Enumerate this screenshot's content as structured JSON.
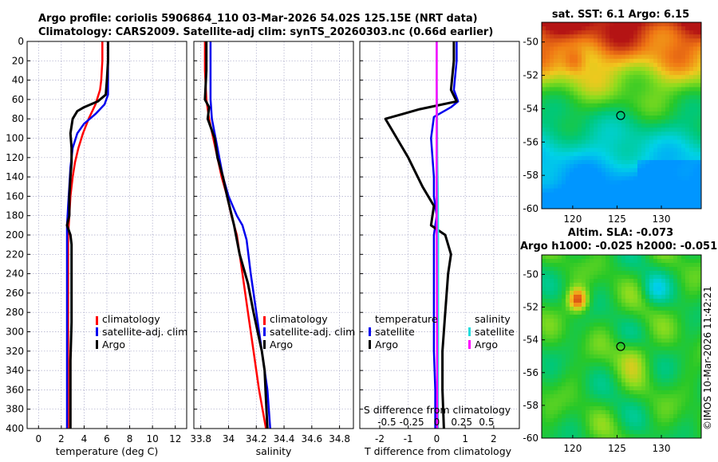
{
  "title": {
    "line1": "Argo profile: coriolis 5906864_110 03-Mar-2026 54.02S 125.15E (NRT data)",
    "line2": "Climatology: CARS2009. Satellite-adj clim: synTS_20260303.nc (0.66d earlier)"
  },
  "watermark": "©IMOS 10-Mar-2026 11:42:21",
  "colors": {
    "red": "#ff0000",
    "blue": "#0000ee",
    "black": "#000000",
    "cyan": "#22dddd",
    "magenta": "#ff00ff"
  },
  "depth_ticks": [
    "0",
    "20",
    "40",
    "60",
    "80",
    "100",
    "120",
    "140",
    "160",
    "180",
    "200",
    "220",
    "240",
    "260",
    "280",
    "300",
    "320",
    "340",
    "360",
    "380",
    "400"
  ],
  "chart_data": [
    {
      "id": "temperature",
      "type": "line",
      "xlabel": "temperature (deg C)",
      "xlim": [
        -1,
        13
      ],
      "ylim": [
        0,
        400
      ],
      "xticks": [
        "0",
        "2",
        "4",
        "6",
        "8",
        "10",
        "12"
      ],
      "legend": [
        "climatology",
        "satellite-adj. clim",
        "Argo"
      ],
      "series": [
        {
          "name": "climatology",
          "color": "red",
          "x": [
            5.6,
            5.6,
            5.5,
            5.4,
            5.0,
            4.4,
            3.9,
            3.5,
            3.2,
            3.0,
            2.8,
            2.7,
            2.6,
            2.6,
            2.6,
            2.6,
            2.6,
            2.6
          ],
          "y": [
            0,
            20,
            40,
            50,
            65,
            80,
            95,
            110,
            125,
            140,
            160,
            180,
            200,
            240,
            280,
            320,
            360,
            400
          ]
        },
        {
          "name": "satellite-adj. clim",
          "color": "blue",
          "x": [
            6.1,
            6.1,
            6.1,
            6.1,
            5.8,
            5.0,
            4.0,
            3.4,
            3.0,
            2.8,
            2.7,
            2.6,
            2.5,
            2.5,
            2.5,
            2.5,
            2.5,
            2.5
          ],
          "y": [
            0,
            20,
            40,
            55,
            65,
            75,
            85,
            95,
            110,
            130,
            150,
            170,
            190,
            230,
            270,
            320,
            360,
            400
          ]
        },
        {
          "name": "Argo",
          "color": "black",
          "x": [
            6.1,
            6.1,
            6.0,
            5.9,
            5.2,
            4.0,
            3.4,
            3.0,
            2.8,
            2.9,
            2.9,
            2.8,
            2.7,
            2.7,
            2.5,
            2.8,
            2.9,
            2.9,
            2.9,
            2.8,
            2.8,
            2.8
          ],
          "y": [
            0,
            20,
            40,
            55,
            62,
            68,
            72,
            80,
            95,
            110,
            125,
            140,
            160,
            180,
            190,
            200,
            210,
            240,
            290,
            330,
            370,
            400
          ]
        }
      ]
    },
    {
      "id": "salinity",
      "type": "line",
      "xlabel": "salinity",
      "xlim": [
        33.75,
        34.9
      ],
      "ylim": [
        0,
        400
      ],
      "xticks": [
        "33.8",
        "34",
        "34.2",
        "34.4",
        "34.6",
        "34.8"
      ],
      "legend": [
        "climatology",
        "satellite-adj. clim",
        "Argo"
      ],
      "series": [
        {
          "name": "climatology",
          "color": "red",
          "x": [
            33.83,
            33.83,
            33.84,
            33.86,
            33.89,
            33.92,
            33.95,
            33.99,
            34.02,
            34.06,
            34.1,
            34.14,
            34.18,
            34.22,
            34.27
          ],
          "y": [
            0,
            30,
            60,
            80,
            100,
            120,
            140,
            160,
            180,
            200,
            240,
            280,
            320,
            360,
            400
          ]
        },
        {
          "name": "satellite-adj. clim",
          "color": "blue",
          "x": [
            33.87,
            33.87,
            33.87,
            33.88,
            33.92,
            33.96,
            34.0,
            34.06,
            34.1,
            34.13,
            34.16,
            34.2,
            34.24,
            34.28,
            34.3
          ],
          "y": [
            0,
            30,
            60,
            80,
            110,
            140,
            160,
            180,
            190,
            205,
            240,
            280,
            320,
            360,
            400
          ]
        },
        {
          "name": "Argo",
          "color": "black",
          "x": [
            33.84,
            33.84,
            33.83,
            33.86,
            33.85,
            33.9,
            33.92,
            33.96,
            33.99,
            34.04,
            34.08,
            34.14,
            34.18,
            34.21,
            34.24,
            34.26,
            34.27,
            34.28
          ],
          "y": [
            0,
            30,
            60,
            68,
            80,
            100,
            120,
            140,
            160,
            190,
            220,
            250,
            280,
            300,
            320,
            340,
            370,
            400
          ]
        }
      ]
    },
    {
      "id": "difference",
      "type": "line",
      "xlabel": "T difference from climatology",
      "xlim": [
        -2.7,
        2.9
      ],
      "ylim": [
        0,
        400
      ],
      "xticks": [
        "-2",
        "-1",
        "0",
        "1",
        "2"
      ],
      "top_xlabel": "S difference from climatology",
      "top_xticks": [
        "-0.5",
        "-0.25",
        "0",
        "0.25",
        "0.5"
      ],
      "legend_groups": [
        {
          "title": "temperature",
          "items": [
            "satellite",
            "Argo"
          ]
        },
        {
          "title": "salinity",
          "items": [
            "satellite",
            "Argo"
          ]
        }
      ],
      "series": [
        {
          "name": "T satellite",
          "color": "blue",
          "x": [
            0.7,
            0.7,
            0.6,
            0.75,
            0.5,
            -0.1,
            -0.2,
            -0.1,
            -0.1,
            0.0,
            -0.1,
            -0.1,
            -0.1,
            -0.1,
            -0.05,
            -0.05
          ],
          "y": [
            0,
            20,
            50,
            62,
            68,
            78,
            100,
            140,
            160,
            180,
            200,
            240,
            280,
            320,
            360,
            400
          ]
        },
        {
          "name": "T Argo",
          "color": "black",
          "x": [
            0.6,
            0.6,
            0.5,
            0.7,
            -0.6,
            -1.8,
            -1.6,
            -1.0,
            -0.5,
            -0.1,
            -0.2,
            0.3,
            0.4,
            0.5,
            0.4,
            0.3,
            0.2,
            0.2,
            0.25
          ],
          "y": [
            0,
            20,
            50,
            62,
            70,
            80,
            90,
            120,
            150,
            170,
            190,
            200,
            210,
            220,
            240,
            280,
            320,
            360,
            400
          ]
        },
        {
          "name": "S satellite",
          "color": "cyan",
          "x": [
            0.0,
            0.0,
            0.01,
            0.02,
            0.04,
            0.05,
            0.05,
            0.05,
            0.04,
            0.04
          ],
          "y": [
            0,
            40,
            80,
            120,
            160,
            200,
            240,
            300,
            360,
            400
          ]
        },
        {
          "name": "S Argo",
          "color": "magenta",
          "x": [
            0.0,
            0.0,
            0.0,
            -0.005,
            0.0,
            0.0,
            0.005,
            0.01,
            0.015,
            0.015
          ],
          "y": [
            0,
            40,
            80,
            120,
            160,
            200,
            240,
            300,
            360,
            400
          ]
        }
      ]
    },
    {
      "id": "sst-map",
      "type": "heatmap",
      "title": "sat. SST: 6.1 Argo: 6.15",
      "xticks": [
        "120",
        "125",
        "130"
      ],
      "yticks": [
        "-50",
        "-52",
        "-54",
        "-56",
        "-58",
        "-60"
      ],
      "marker": {
        "lon": 125.15,
        "lat": -54.02
      }
    },
    {
      "id": "sla-map",
      "type": "heatmap",
      "title_line1": "Altim. SLA: -0.073",
      "title_line2": "Argo h1000: -0.025 h2000: -0.051",
      "xticks": [
        "120",
        "125",
        "130"
      ],
      "yticks": [
        "-50",
        "-52",
        "-54",
        "-56",
        "-58",
        "-60"
      ],
      "marker": {
        "lon": 125.15,
        "lat": -54.02
      }
    }
  ]
}
